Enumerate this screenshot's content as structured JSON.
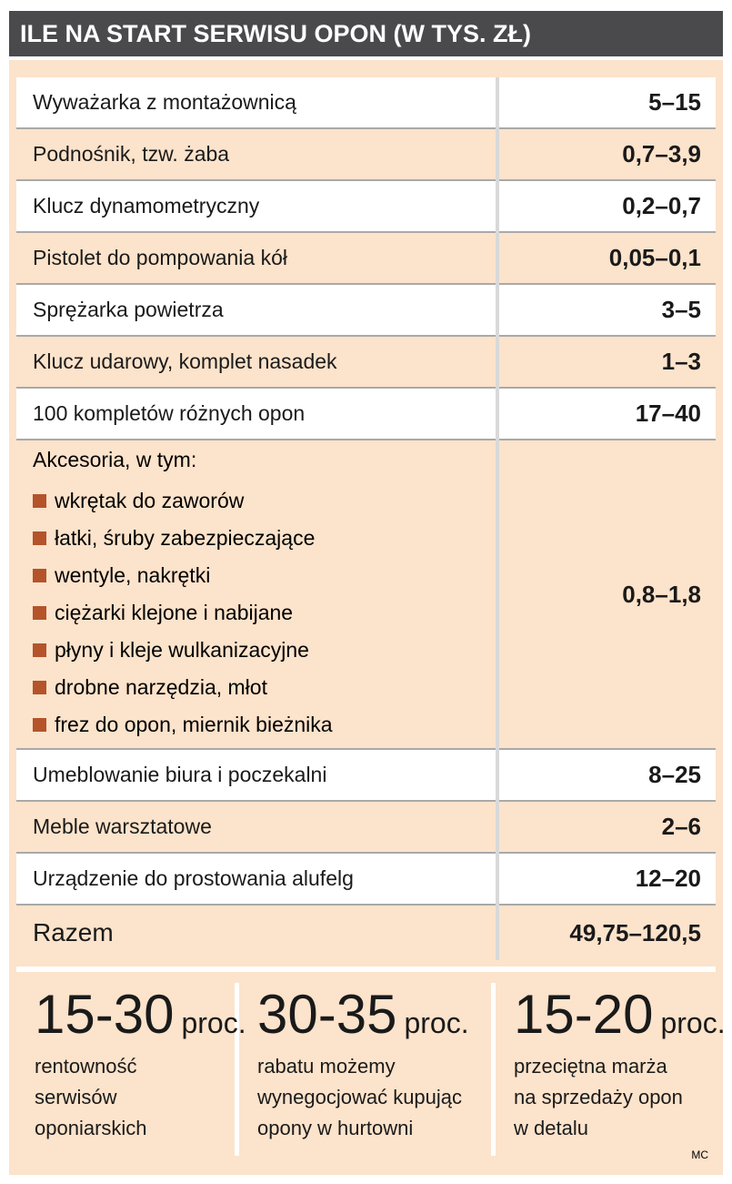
{
  "header": {
    "title": "ILE NA START SERWISU OPON (W TYS. ZŁ)"
  },
  "table": {
    "rows": [
      {
        "label": "Wyważarka z montażownicą",
        "value": "5–15"
      },
      {
        "label": "Podnośnik, tzw. żaba",
        "value": "0,7–3,9"
      },
      {
        "label": "Klucz dynamometryczny",
        "value": "0,2–0,7"
      },
      {
        "label": "Pistolet do pompowania kół",
        "value": "0,05–0,1"
      },
      {
        "label": "Sprężarka powietrza",
        "value": "3–5"
      },
      {
        "label": "Klucz udarowy, komplet nasadek",
        "value": "1–3"
      },
      {
        "label": "100 kompletów różnych opon",
        "value": "17–40"
      },
      {
        "label": "Akcesoria, w tym:",
        "value": "0,8–1,8",
        "items": [
          "wkrętak do zaworów",
          "łatki, śruby zabezpieczające",
          "wentyle, nakrętki",
          "ciężarki klejone i nabijane",
          "płyny i kleje wulkanizacyjne",
          "drobne narzędzia, młot",
          "frez do opon, miernik bieżnika"
        ]
      },
      {
        "label": "Umeblowanie biura i poczekalni",
        "value": "8–25"
      },
      {
        "label": "Meble warsztatowe",
        "value": "2–6"
      },
      {
        "label": "Urządzenie do prostowania alufelg",
        "value": "12–20"
      }
    ],
    "total": {
      "label": "Razem",
      "value": "49,75–120,5"
    }
  },
  "stats": [
    {
      "number": "15-30",
      "unit": "proc.",
      "description": [
        "rentowność",
        "serwisów",
        "oponiarskich"
      ]
    },
    {
      "number": "30-35",
      "unit": "proc.",
      "description": [
        "rabatu możemy",
        "wynegocjować kupując",
        "opony w hurtowni"
      ]
    },
    {
      "number": "15-20",
      "unit": "proc.",
      "description": [
        "przeciętna marża",
        "na sprzedaży opon",
        "w detalu"
      ]
    }
  ],
  "footer": {
    "credit": "MC"
  }
}
